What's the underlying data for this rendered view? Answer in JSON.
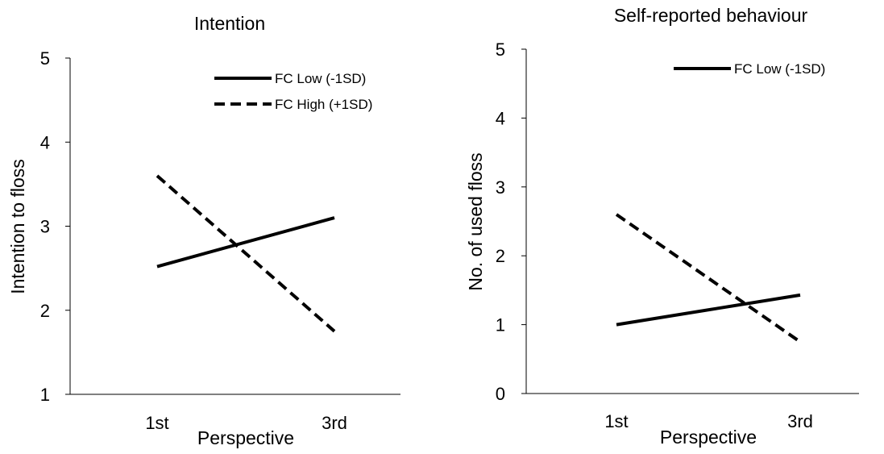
{
  "chart_data": [
    {
      "type": "line",
      "title": "Intention",
      "xlabel": "Perspective",
      "ylabel": "Intention to floss",
      "categories": [
        "1st",
        "3rd"
      ],
      "ylim": [
        1,
        5
      ],
      "yticks": [
        "1",
        "2",
        "3",
        "4",
        "5"
      ],
      "series": [
        {
          "name": "FC Low (-1SD)",
          "values": [
            2.52,
            3.1
          ],
          "style": "solid"
        },
        {
          "name": "FC High (+1SD)",
          "values": [
            3.6,
            1.75
          ],
          "style": "dashed"
        }
      ],
      "grid": false,
      "legend": "top-right"
    },
    {
      "type": "line",
      "title": "Self-reported behaviour",
      "xlabel": "Perspective",
      "ylabel": "No. of used floss",
      "categories": [
        "1st",
        "3rd"
      ],
      "ylim": [
        0,
        5
      ],
      "yticks": [
        "0",
        "1",
        "2",
        "3",
        "4",
        "5"
      ],
      "series": [
        {
          "name": "FC Low (-1SD)",
          "values": [
            1.0,
            1.43
          ],
          "style": "solid"
        },
        {
          "values": [
            2.6,
            0.75
          ],
          "style": "dashed"
        }
      ],
      "grid": false,
      "legend": "top-right"
    }
  ],
  "colors": {
    "line": "#000000",
    "axis": "#000000",
    "background": "#ffffff"
  }
}
